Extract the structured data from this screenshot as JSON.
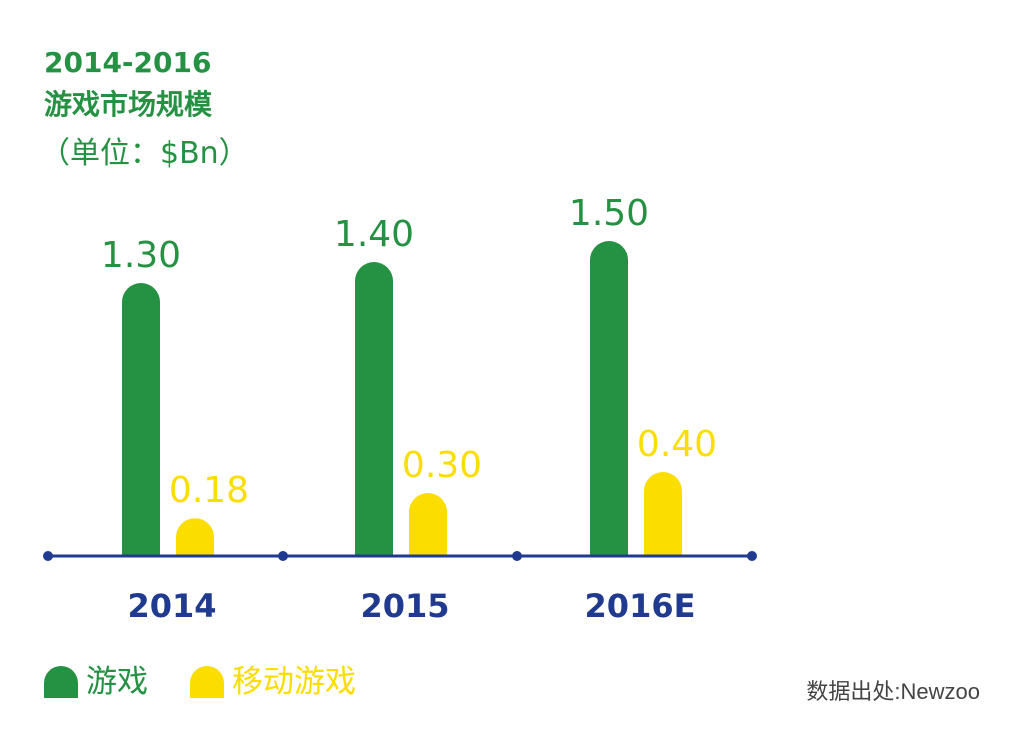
{
  "colors": {
    "green": "#259143",
    "yellow": "#fbdd00",
    "axis": "#1f3a8f",
    "source": "#444444"
  },
  "header": {
    "title_line1": "2014-2016",
    "title_line2": "游戏市场规模",
    "unit": "（单位：$Bn）"
  },
  "source": "数据出处:Newzoo",
  "chart_data": {
    "type": "bar",
    "categories": [
      "2014",
      "2015",
      "2016E"
    ],
    "series": [
      {
        "name": "游戏",
        "values": [
          1.3,
          1.4,
          1.5
        ],
        "labels": [
          "1.30",
          "1.40",
          "1.50"
        ],
        "color": "#259143"
      },
      {
        "name": "移动游戏",
        "values": [
          0.18,
          0.3,
          0.4
        ],
        "labels": [
          "0.18",
          "0.30",
          "0.40"
        ],
        "color": "#fbdd00"
      }
    ],
    "title": "2014-2016 游戏市场规模",
    "ylabel": "（单位：$Bn）",
    "ylim": [
      0,
      1.6
    ],
    "grid": false,
    "legend": "bottom-left"
  }
}
